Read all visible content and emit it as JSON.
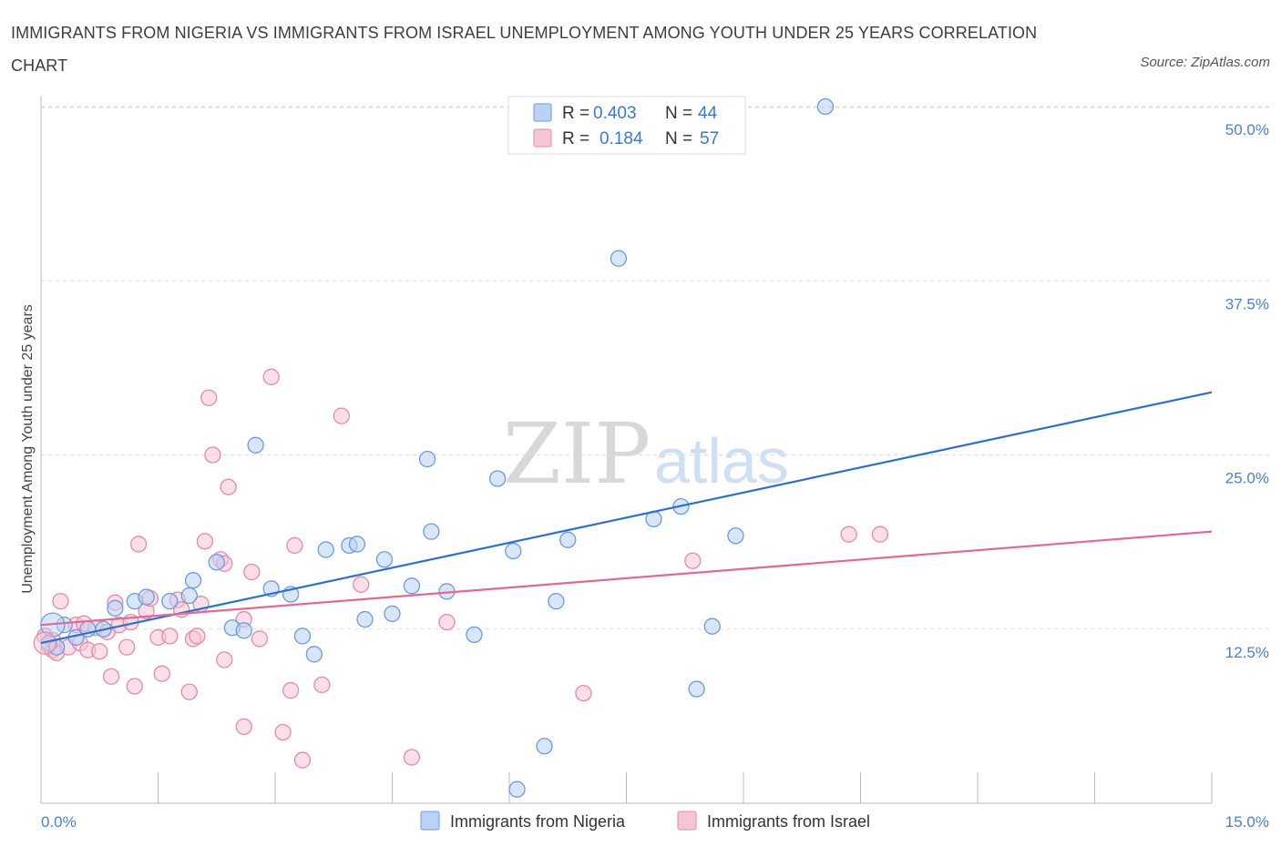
{
  "title": "IMMIGRANTS FROM NIGERIA VS IMMIGRANTS FROM ISRAEL UNEMPLOYMENT AMONG YOUTH UNDER 25 YEARS CORRELATION CHART",
  "source": "Source: ZipAtlas.com",
  "watermark": {
    "zip": "ZIP",
    "atlas": "atlas"
  },
  "chart_data": {
    "type": "scatter",
    "title": "IMMIGRANTS FROM NIGERIA VS IMMIGRANTS FROM ISRAEL UNEMPLOYMENT AMONG YOUTH UNDER 25 YEARS CORRELATION CHART",
    "xlabel": "",
    "ylabel": "Unemployment Among Youth under 25 years",
    "xlim": [
      0,
      15
    ],
    "ylim": [
      0,
      50
    ],
    "x_tick_labels": [
      {
        "value": 0,
        "label": "0.0%"
      },
      {
        "value": 15,
        "label": "15.0%"
      }
    ],
    "y_tick_labels": [
      {
        "value": 12.5,
        "label": "12.5%"
      },
      {
        "value": 25,
        "label": "25.0%"
      },
      {
        "value": 37.5,
        "label": "37.5%"
      },
      {
        "value": 50,
        "label": "50.0%"
      }
    ],
    "grid": true,
    "legend_position": "top-center",
    "legend": [
      {
        "series": "Immigrants from Nigeria",
        "r_label": "R =",
        "r_value": "0.403",
        "n_label": "N =",
        "n_value": "44"
      },
      {
        "series": "Immigrants from Israel",
        "r_label": "R =",
        "r_value": "0.184",
        "n_label": "N =",
        "n_value": "57"
      }
    ],
    "series": [
      {
        "name": "Immigrants from Nigeria",
        "color": "#6b9be0",
        "fill": "#b9d2f5",
        "trend_color": "#2f6fcc",
        "trend": {
          "x0": 0,
          "y0": 11.5,
          "x1": 15,
          "y1": 29.5
        },
        "points": [
          [
            0.1,
            11.5
          ],
          [
            0.2,
            11.2
          ],
          [
            0.3,
            12.8
          ],
          [
            0.45,
            11.9
          ],
          [
            0.6,
            12.5
          ],
          [
            0.8,
            12.5
          ],
          [
            0.95,
            14.0
          ],
          [
            1.2,
            14.5
          ],
          [
            1.35,
            14.8
          ],
          [
            1.65,
            14.5
          ],
          [
            1.9,
            14.9
          ],
          [
            1.95,
            16.0
          ],
          [
            2.25,
            17.3
          ],
          [
            2.45,
            12.6
          ],
          [
            2.6,
            12.4
          ],
          [
            2.75,
            25.7
          ],
          [
            2.95,
            15.4
          ],
          [
            3.2,
            15.0
          ],
          [
            3.35,
            12.0
          ],
          [
            3.5,
            10.7
          ],
          [
            3.65,
            18.2
          ],
          [
            3.95,
            18.5
          ],
          [
            4.05,
            18.6
          ],
          [
            4.15,
            13.2
          ],
          [
            4.4,
            17.5
          ],
          [
            4.5,
            13.6
          ],
          [
            4.75,
            15.6
          ],
          [
            4.95,
            24.7
          ],
          [
            5.0,
            19.5
          ],
          [
            5.2,
            15.2
          ],
          [
            5.55,
            12.1
          ],
          [
            5.85,
            23.3
          ],
          [
            6.05,
            18.1
          ],
          [
            6.1,
            1.0
          ],
          [
            6.45,
            4.1
          ],
          [
            6.6,
            14.5
          ],
          [
            6.75,
            18.9
          ],
          [
            7.4,
            39.1
          ],
          [
            7.85,
            20.4
          ],
          [
            8.2,
            21.3
          ],
          [
            8.4,
            8.2
          ],
          [
            8.6,
            12.7
          ],
          [
            8.9,
            19.2
          ],
          [
            10.05,
            50.0
          ]
        ]
      },
      {
        "name": "Immigrants from Israel",
        "color": "#e68aa8",
        "fill": "#f6c5d5",
        "trend_color": "#e06a95",
        "trend": {
          "x0": 0,
          "y0": 12.8,
          "x1": 15,
          "y1": 19.5
        },
        "points": [
          [
            0.05,
            12.0
          ],
          [
            0.1,
            11.3
          ],
          [
            0.15,
            11.0
          ],
          [
            0.2,
            10.8
          ],
          [
            0.25,
            14.5
          ],
          [
            0.35,
            11.2
          ],
          [
            0.45,
            12.8
          ],
          [
            0.5,
            11.5
          ],
          [
            0.55,
            12.9
          ],
          [
            0.6,
            11.0
          ],
          [
            0.7,
            12.6
          ],
          [
            0.75,
            10.9
          ],
          [
            0.85,
            12.3
          ],
          [
            0.9,
            9.1
          ],
          [
            0.95,
            14.4
          ],
          [
            1.0,
            12.8
          ],
          [
            1.1,
            11.2
          ],
          [
            1.15,
            13.0
          ],
          [
            1.2,
            8.4
          ],
          [
            1.25,
            18.6
          ],
          [
            1.35,
            13.8
          ],
          [
            1.4,
            14.7
          ],
          [
            1.5,
            11.9
          ],
          [
            1.55,
            9.3
          ],
          [
            1.65,
            12.0
          ],
          [
            1.75,
            14.6
          ],
          [
            1.8,
            13.9
          ],
          [
            1.9,
            8.0
          ],
          [
            1.95,
            11.8
          ],
          [
            2.0,
            12.0
          ],
          [
            2.05,
            14.3
          ],
          [
            2.1,
            18.8
          ],
          [
            2.15,
            29.1
          ],
          [
            2.2,
            25.0
          ],
          [
            2.3,
            17.5
          ],
          [
            2.35,
            17.2
          ],
          [
            2.35,
            10.3
          ],
          [
            2.4,
            22.7
          ],
          [
            2.6,
            5.5
          ],
          [
            2.6,
            13.2
          ],
          [
            2.7,
            16.6
          ],
          [
            2.8,
            11.8
          ],
          [
            2.95,
            30.6
          ],
          [
            3.1,
            5.1
          ],
          [
            3.2,
            8.1
          ],
          [
            3.25,
            18.5
          ],
          [
            3.35,
            3.1
          ],
          [
            3.6,
            8.5
          ],
          [
            3.85,
            27.8
          ],
          [
            4.1,
            15.7
          ],
          [
            4.75,
            3.3
          ],
          [
            5.2,
            13.0
          ],
          [
            6.95,
            7.9
          ],
          [
            8.35,
            17.4
          ],
          [
            10.35,
            19.3
          ],
          [
            10.75,
            19.3
          ],
          [
            0.15,
            11.7
          ]
        ]
      }
    ]
  }
}
